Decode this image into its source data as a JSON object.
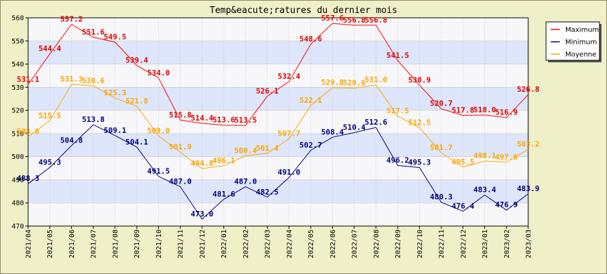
{
  "chart_data": {
    "type": "line",
    "title": "Temp&eacute;ratures du dernier mois",
    "xlabel": "",
    "ylabel": "",
    "ylim": [
      470,
      560
    ],
    "yticks": [
      470,
      480,
      490,
      500,
      510,
      520,
      530,
      540,
      550,
      560
    ],
    "categories": [
      "2021/04",
      "2021/05",
      "2021/06",
      "2021/07",
      "2021/08",
      "2021/09",
      "2021/10",
      "2021/11",
      "2021/12",
      "2022/01",
      "2022/02",
      "2022/03",
      "2022/04",
      "2022/05",
      "2022/06",
      "2022/07",
      "2022/08",
      "2022/09",
      "2022/10",
      "2022/11",
      "2022/12",
      "2023/01",
      "2023/02",
      "2023/03"
    ],
    "legend_position": "top-right",
    "grid": true,
    "series": [
      {
        "name": "Maximum",
        "color": "#FF0000",
        "label_color": "#E00000",
        "values": [
          531.1,
          544.4,
          557.2,
          551.6,
          549.5,
          539.4,
          534.0,
          515.8,
          514.4,
          513.6,
          513.5,
          526.1,
          532.4,
          548.6,
          557.6,
          556.8,
          556.8,
          541.5,
          530.9,
          520.7,
          517.8,
          518.0,
          516.9,
          526.8
        ],
        "labels": [
          "531.1",
          "544.4",
          "557.2",
          "551.6",
          "549.5",
          "539.4",
          "534.0",
          "515.8",
          "514.4",
          "513.6",
          "513.5",
          "526.1",
          "532.4",
          "548.6",
          "557.6",
          "556.8",
          "556.8",
          "541.5",
          "530.9",
          "520.7",
          "517.8",
          "518.0",
          "516.9",
          "526.8"
        ]
      },
      {
        "name": "Minimum",
        "color": "#000080",
        "label_color": "#000080",
        "values": [
          488.3,
          495.3,
          504.8,
          513.8,
          509.1,
          504.1,
          491.5,
          487.0,
          473.0,
          481.6,
          487.0,
          482.5,
          491.0,
          502.7,
          508.4,
          510.4,
          512.6,
          496.2,
          495.3,
          480.3,
          476.4,
          483.4,
          476.9,
          483.9
        ],
        "labels": [
          "488.3",
          "495.3",
          "504.8",
          "513.8",
          "509.1",
          "504.1",
          "491.5",
          "487.0",
          "473.0",
          "481.6",
          "487.0",
          "482.5",
          "491.0",
          "502.7",
          "508.4",
          "510.4",
          "512.6",
          "496.2",
          "495.3",
          "480.3",
          "476.4",
          "483.4",
          "476.9",
          "483.9"
        ]
      },
      {
        "name": "Moyenne",
        "color": "#FFA500",
        "label_color": "#FFA500",
        "values": [
          508.6,
          515.5,
          531.3,
          530.6,
          525.3,
          521.8,
          509.0,
          501.9,
          494.8,
          496.1,
          500.4,
          501.4,
          507.7,
          522.1,
          529.8,
          529.6,
          531.0,
          517.5,
          512.5,
          501.7,
          495.5,
          498.1,
          497.6,
          503.2
        ],
        "labels": [
          "508.6",
          "515.5",
          "531.3",
          "530.6",
          "525.3",
          "521.8",
          "509.0",
          "501.9",
          "494.8",
          "496.1",
          "500.4",
          "501.4",
          "507.7",
          "522.1",
          "529.8",
          "529.6",
          "531.0",
          "517.5",
          "512.5",
          "501.7",
          "495.5",
          "498.1",
          "497.6",
          "503.2"
        ]
      }
    ]
  },
  "colors": {
    "background": "#EFEFC8",
    "plot_background": "#F7F7F9",
    "band": "#DDE6FA",
    "grid": "#C8C8C8"
  }
}
